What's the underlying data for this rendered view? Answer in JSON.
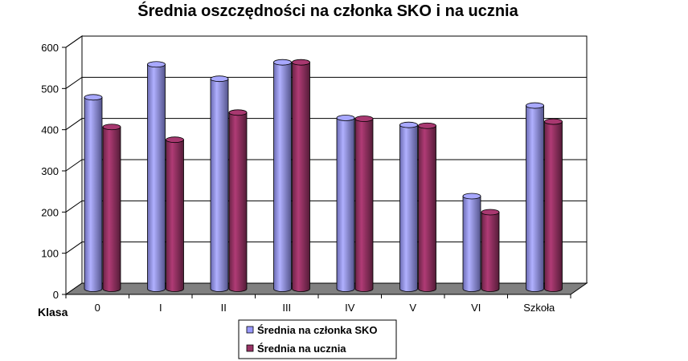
{
  "colors": {
    "series1": "#9999ff",
    "series2": "#993366",
    "grid": "#000000",
    "floor": "#808080",
    "wall": "#ffffff"
  },
  "chart_data": {
    "type": "bar",
    "title": "Średnia oszczędności na członka SKO i na ucznia",
    "xlabel": "Klasa",
    "ylabel": "",
    "ylim": [
      0,
      600
    ],
    "yticks": [
      "0",
      "100",
      "200",
      "300",
      "400",
      "500",
      "600"
    ],
    "categories": [
      "0",
      "I",
      "II",
      "III",
      "IV",
      "V",
      "VI",
      "Szkoła"
    ],
    "series": [
      {
        "name": "Średnia na członka SKO",
        "values": [
          465,
          545,
          510,
          550,
          415,
          398,
          225,
          445
        ]
      },
      {
        "name": "Średnia na ucznia",
        "values": [
          393,
          362,
          428,
          550,
          413,
          396,
          186,
          406
        ]
      }
    ],
    "grid": true,
    "legend": "bottom"
  }
}
